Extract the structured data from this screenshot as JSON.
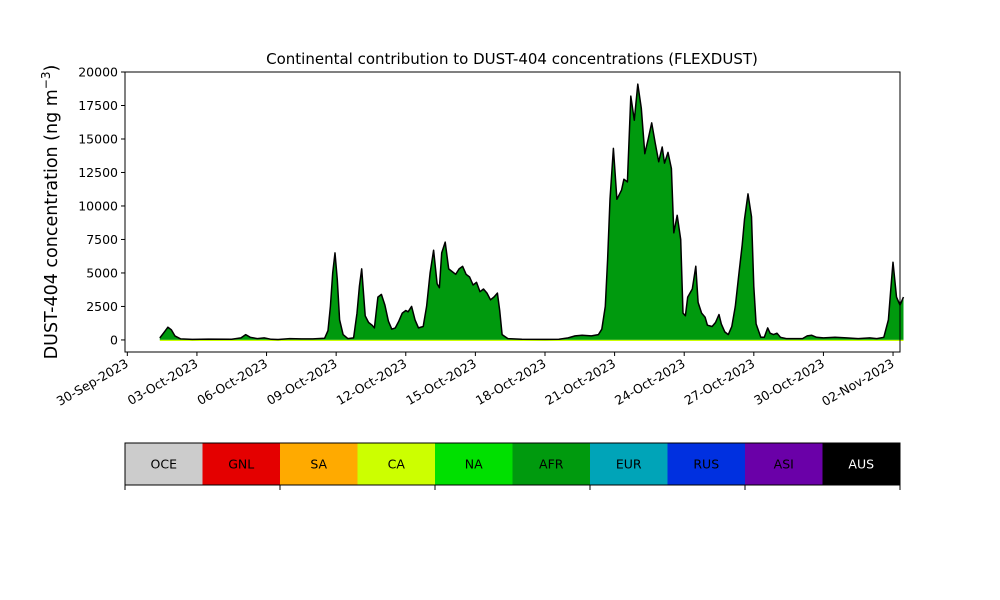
{
  "chart_data": {
    "type": "area",
    "title": "Continental contribution to DUST-404 concentrations (FLEXDUST)",
    "ylabel_main": "DUST-404 concentration (ng m",
    "ylabel_sup": "−3",
    "ylabel_close": ")",
    "xlabel": "",
    "grid": false,
    "y_ticks": [
      0,
      2500,
      5000,
      7500,
      10000,
      12500,
      15000,
      17500,
      20000
    ],
    "y_tick_labels": [
      "0",
      "2500",
      "5000",
      "7500",
      "10000",
      "12500",
      "15000",
      "17500",
      "20000"
    ],
    "ylim": [
      -900,
      20000
    ],
    "xlim": [
      -0.1,
      33.3
    ],
    "x_ticks": [
      0,
      3,
      6,
      9,
      12,
      15,
      18,
      21,
      24,
      27,
      30,
      33
    ],
    "x_tick_labels": [
      "30-Sep-2023",
      "03-Oct-2023",
      "06-Oct-2023",
      "09-Oct-2023",
      "12-Oct-2023",
      "15-Oct-2023",
      "18-Oct-2023",
      "21-Oct-2023",
      "24-Oct-2023",
      "27-Oct-2023",
      "30-Oct-2023",
      "02-Nov-2023"
    ],
    "total": [
      [
        1.4,
        150
      ],
      [
        1.6,
        600
      ],
      [
        1.75,
        950
      ],
      [
        1.9,
        750
      ],
      [
        2.05,
        300
      ],
      [
        2.3,
        80
      ],
      [
        2.8,
        40
      ],
      [
        3.5,
        60
      ],
      [
        4.5,
        50
      ],
      [
        4.9,
        150
      ],
      [
        5.1,
        400
      ],
      [
        5.3,
        200
      ],
      [
        5.6,
        100
      ],
      [
        5.9,
        150
      ],
      [
        6.2,
        50
      ],
      [
        6.5,
        30
      ],
      [
        7.0,
        100
      ],
      [
        7.5,
        80
      ],
      [
        8.0,
        80
      ],
      [
        8.5,
        120
      ],
      [
        8.65,
        700
      ],
      [
        8.75,
        2500
      ],
      [
        8.85,
        5000
      ],
      [
        8.95,
        6500
      ],
      [
        9.05,
        4500
      ],
      [
        9.15,
        1500
      ],
      [
        9.3,
        400
      ],
      [
        9.5,
        100
      ],
      [
        9.75,
        150
      ],
      [
        9.9,
        2000
      ],
      [
        10.0,
        4000
      ],
      [
        10.1,
        5300
      ],
      [
        10.25,
        1800
      ],
      [
        10.4,
        1300
      ],
      [
        10.55,
        1100
      ],
      [
        10.65,
        900
      ],
      [
        10.8,
        3200
      ],
      [
        10.95,
        3400
      ],
      [
        11.1,
        2600
      ],
      [
        11.25,
        1400
      ],
      [
        11.4,
        800
      ],
      [
        11.55,
        900
      ],
      [
        11.7,
        1400
      ],
      [
        11.85,
        2000
      ],
      [
        12.0,
        2200
      ],
      [
        12.1,
        2100
      ],
      [
        12.25,
        2500
      ],
      [
        12.4,
        1500
      ],
      [
        12.55,
        900
      ],
      [
        12.75,
        1000
      ],
      [
        12.9,
        2500
      ],
      [
        13.05,
        5000
      ],
      [
        13.2,
        6700
      ],
      [
        13.35,
        4200
      ],
      [
        13.45,
        3900
      ],
      [
        13.55,
        6500
      ],
      [
        13.7,
        7300
      ],
      [
        13.85,
        5300
      ],
      [
        14.0,
        5100
      ],
      [
        14.15,
        4900
      ],
      [
        14.3,
        5300
      ],
      [
        14.45,
        5500
      ],
      [
        14.6,
        4900
      ],
      [
        14.75,
        4700
      ],
      [
        14.9,
        4100
      ],
      [
        15.05,
        4300
      ],
      [
        15.2,
        3600
      ],
      [
        15.35,
        3800
      ],
      [
        15.5,
        3500
      ],
      [
        15.65,
        3000
      ],
      [
        15.8,
        3200
      ],
      [
        15.95,
        3500
      ],
      [
        16.05,
        2200
      ],
      [
        16.15,
        400
      ],
      [
        16.4,
        100
      ],
      [
        17.0,
        50
      ],
      [
        18.0,
        40
      ],
      [
        18.6,
        50
      ],
      [
        19.0,
        150
      ],
      [
        19.3,
        300
      ],
      [
        19.6,
        350
      ],
      [
        20.0,
        300
      ],
      [
        20.3,
        400
      ],
      [
        20.45,
        800
      ],
      [
        20.6,
        2500
      ],
      [
        20.7,
        6000
      ],
      [
        20.8,
        10500
      ],
      [
        20.95,
        14300
      ],
      [
        21.1,
        10500
      ],
      [
        21.3,
        11200
      ],
      [
        21.4,
        12000
      ],
      [
        21.55,
        11800
      ],
      [
        21.7,
        18200
      ],
      [
        21.85,
        16400
      ],
      [
        22.0,
        19100
      ],
      [
        22.15,
        17300
      ],
      [
        22.3,
        13900
      ],
      [
        22.45,
        15000
      ],
      [
        22.6,
        16200
      ],
      [
        22.75,
        14700
      ],
      [
        22.9,
        13300
      ],
      [
        23.05,
        14400
      ],
      [
        23.15,
        13200
      ],
      [
        23.3,
        14000
      ],
      [
        23.45,
        12800
      ],
      [
        23.55,
        8000
      ],
      [
        23.7,
        9300
      ],
      [
        23.85,
        7500
      ],
      [
        23.95,
        2000
      ],
      [
        24.05,
        1800
      ],
      [
        24.15,
        3200
      ],
      [
        24.35,
        3800
      ],
      [
        24.5,
        5500
      ],
      [
        24.6,
        2800
      ],
      [
        24.75,
        2000
      ],
      [
        24.9,
        1700
      ],
      [
        25.0,
        1100
      ],
      [
        25.2,
        1000
      ],
      [
        25.35,
        1300
      ],
      [
        25.5,
        1900
      ],
      [
        25.6,
        1200
      ],
      [
        25.75,
        600
      ],
      [
        25.9,
        400
      ],
      [
        26.05,
        1000
      ],
      [
        26.2,
        2500
      ],
      [
        26.35,
        4800
      ],
      [
        26.5,
        7100
      ],
      [
        26.6,
        9000
      ],
      [
        26.75,
        10900
      ],
      [
        26.9,
        9200
      ],
      [
        27.0,
        4000
      ],
      [
        27.1,
        1200
      ],
      [
        27.3,
        200
      ],
      [
        27.45,
        200
      ],
      [
        27.6,
        900
      ],
      [
        27.7,
        500
      ],
      [
        27.85,
        400
      ],
      [
        28.0,
        500
      ],
      [
        28.15,
        200
      ],
      [
        28.4,
        100
      ],
      [
        28.8,
        100
      ],
      [
        29.1,
        100
      ],
      [
        29.3,
        300
      ],
      [
        29.5,
        350
      ],
      [
        29.7,
        200
      ],
      [
        30.0,
        150
      ],
      [
        30.5,
        200
      ],
      [
        31.0,
        150
      ],
      [
        31.5,
        100
      ],
      [
        32.0,
        150
      ],
      [
        32.3,
        100
      ],
      [
        32.6,
        200
      ],
      [
        32.8,
        1500
      ],
      [
        32.9,
        3700
      ],
      [
        33.0,
        5800
      ],
      [
        33.15,
        3200
      ],
      [
        33.3,
        2600
      ],
      [
        33.45,
        3200
      ]
    ],
    "area_color": "#009a0e",
    "outline_color": "#000000",
    "legend": {
      "placement": "below",
      "items": [
        {
          "label": "OCE",
          "color": "#cccccc",
          "text_color": "#000000"
        },
        {
          "label": "GNL",
          "color": "#e40000",
          "text_color": "#000000"
        },
        {
          "label": "SA",
          "color": "#ffaa00",
          "text_color": "#000000"
        },
        {
          "label": "CA",
          "color": "#ccff00",
          "text_color": "#000000"
        },
        {
          "label": "NA",
          "color": "#00e000",
          "text_color": "#000000"
        },
        {
          "label": "AFR",
          "color": "#009a0e",
          "text_color": "#000000"
        },
        {
          "label": "EUR",
          "color": "#00a4b8",
          "text_color": "#000000"
        },
        {
          "label": "RUS",
          "color": "#0030e0",
          "text_color": "#000000"
        },
        {
          "label": "ASI",
          "color": "#6a00a8",
          "text_color": "#000000"
        },
        {
          "label": "AUS",
          "color": "#000000",
          "text_color": "#ffffff"
        }
      ]
    }
  }
}
